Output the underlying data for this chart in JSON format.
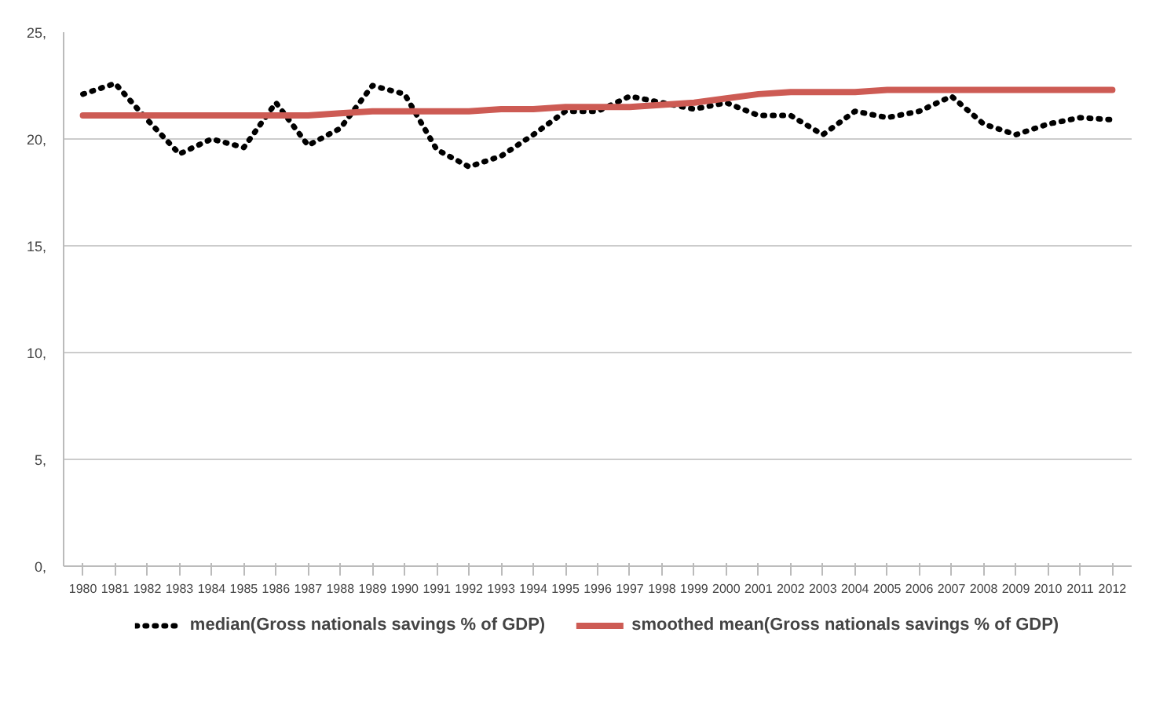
{
  "chart_data": {
    "type": "line",
    "categories": [
      "1980",
      "1981",
      "1982",
      "1983",
      "1984",
      "1985",
      "1986",
      "1987",
      "1988",
      "1989",
      "1990",
      "1991",
      "1992",
      "1993",
      "1994",
      "1995",
      "1996",
      "1997",
      "1998",
      "1999",
      "2000",
      "2001",
      "2002",
      "2003",
      "2004",
      "2005",
      "2006",
      "2007",
      "2008",
      "2009",
      "2010",
      "2011",
      "2012"
    ],
    "series": [
      {
        "name": "median(Gross nationals savings % of GDP)",
        "color": "#000000",
        "line_style": "dotted",
        "values": [
          22.1,
          22.6,
          20.9,
          19.3,
          20.0,
          19.6,
          21.7,
          19.7,
          20.5,
          22.5,
          22.1,
          19.5,
          18.7,
          19.2,
          20.2,
          21.3,
          21.3,
          22.0,
          21.7,
          21.4,
          21.7,
          21.1,
          21.1,
          20.2,
          21.3,
          21.0,
          21.3,
          22.0,
          20.7,
          20.2,
          20.7,
          21.0,
          20.9
        ]
      },
      {
        "name": "smoothed mean(Gross nationals savings % of GDP)",
        "color": "#cd5b54",
        "line_style": "solid",
        "values": [
          21.1,
          21.1,
          21.1,
          21.1,
          21.1,
          21.1,
          21.1,
          21.1,
          21.2,
          21.3,
          21.3,
          21.3,
          21.3,
          21.4,
          21.4,
          21.5,
          21.5,
          21.5,
          21.6,
          21.7,
          21.9,
          22.1,
          22.2,
          22.2,
          22.2,
          22.3,
          22.3,
          22.3,
          22.3,
          22.3,
          22.3,
          22.3,
          22.3
        ]
      }
    ],
    "ylim": [
      0,
      25
    ],
    "yticks": [
      {
        "value": 0,
        "label": "0,"
      },
      {
        "value": 5,
        "label": "5,"
      },
      {
        "value": 10,
        "label": "10,"
      },
      {
        "value": 15,
        "label": "15,"
      },
      {
        "value": 20,
        "label": "20,"
      },
      {
        "value": 25,
        "label": "25,"
      }
    ],
    "grid": "y",
    "legend": "bottom",
    "marker": "none"
  }
}
